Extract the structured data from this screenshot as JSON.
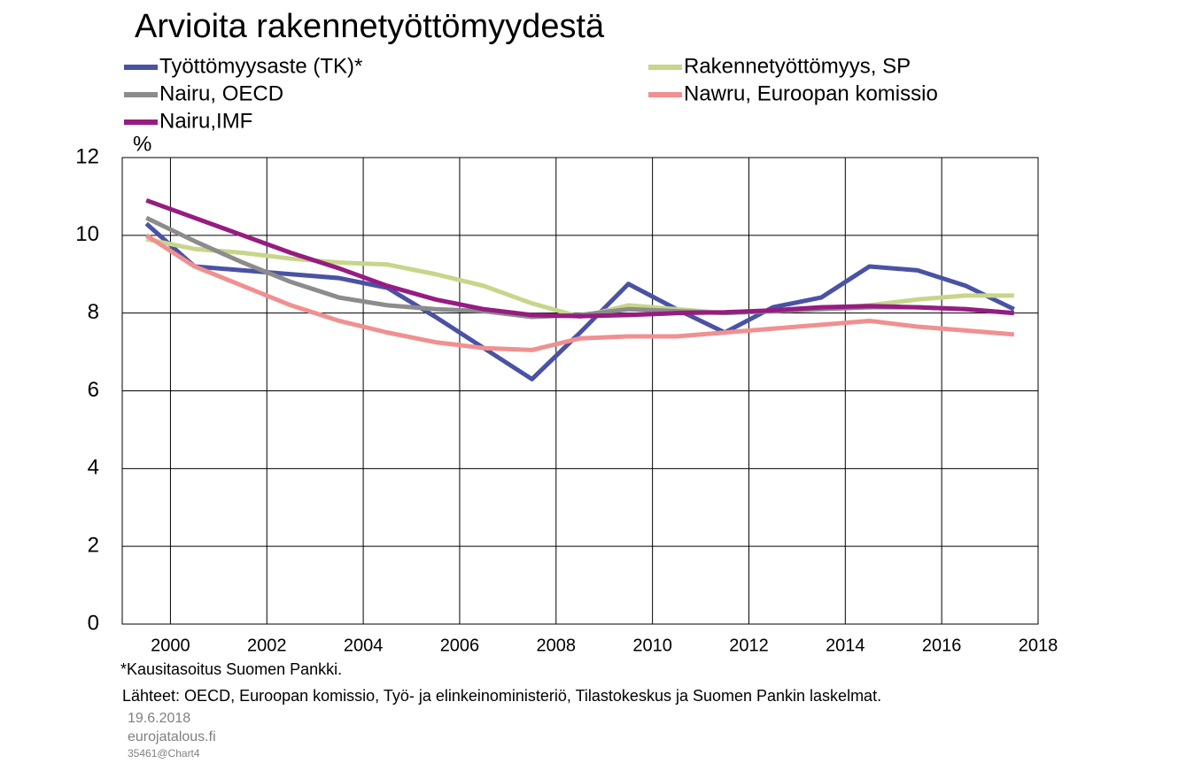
{
  "chart_data": {
    "type": "line",
    "title": "Arvioita rakennetyöttömyydestä",
    "y_label": "%",
    "x": [
      1999.5,
      2000.5,
      2001.5,
      2002.5,
      2003.5,
      2004.5,
      2005.5,
      2006.5,
      2007.5,
      2008.5,
      2009.5,
      2010.5,
      2011.5,
      2012.5,
      2013.5,
      2014.5,
      2015.5,
      2016.5,
      2017.5
    ],
    "series": [
      {
        "name": "Työttömyysaste (TK)*",
        "color": "#4a52a4",
        "values": [
          10.3,
          9.2,
          9.1,
          9.0,
          8.9,
          8.65,
          7.9,
          7.1,
          6.3,
          7.5,
          8.75,
          8.1,
          7.5,
          8.15,
          8.4,
          9.2,
          9.1,
          8.7,
          8.1
        ]
      },
      {
        "name": "Rakennetyöttömyys, SP",
        "color": "#c6d68a",
        "values": [
          9.9,
          9.65,
          9.55,
          9.4,
          9.3,
          9.25,
          9.0,
          8.7,
          8.25,
          7.9,
          8.2,
          8.1,
          8.0,
          8.05,
          8.1,
          8.2,
          8.35,
          8.45,
          8.45
        ]
      },
      {
        "name": "Nairu, OECD",
        "color": "#8c8c8c",
        "values": [
          10.45,
          9.85,
          9.3,
          8.8,
          8.4,
          8.2,
          8.1,
          8.05,
          7.9,
          7.95,
          8.1,
          8.05,
          8.0,
          8.05,
          8.1,
          8.15,
          8.15,
          8.1,
          8.0
        ]
      },
      {
        "name": "Nawru, Euroopan komissio",
        "color": "#f09090",
        "values": [
          10.0,
          9.2,
          8.7,
          8.2,
          7.8,
          7.5,
          7.25,
          7.1,
          7.05,
          7.35,
          7.4,
          7.4,
          7.5,
          7.6,
          7.7,
          7.8,
          7.65,
          7.55,
          7.45
        ]
      },
      {
        "name": "Nairu,IMF",
        "color": "#961c82",
        "values": [
          10.9,
          10.45,
          10.0,
          9.55,
          9.15,
          8.7,
          8.35,
          8.1,
          7.95,
          7.92,
          7.95,
          8.0,
          8.02,
          8.07,
          8.15,
          8.18,
          8.15,
          8.1,
          8.0
        ]
      }
    ],
    "xlim": [
      1999,
      2018
    ],
    "xticks": [
      2000,
      2002,
      2004,
      2006,
      2008,
      2010,
      2012,
      2014,
      2016,
      2018
    ],
    "ylim": [
      0,
      12
    ],
    "yticks": [
      0,
      2,
      4,
      6,
      8,
      10,
      12
    ],
    "grid": true,
    "footnote": "*Kausitasoitus Suomen Pankki.",
    "sources": "Lähteet: OECD, Euroopan komissio, Työ- ja elinkeinoministeriö,  Tilastokeskus ja Suomen Pankin laskelmat.",
    "date": "19.6.2018",
    "site": "eurojatalous.fi",
    "code": "35461@Chart4"
  }
}
